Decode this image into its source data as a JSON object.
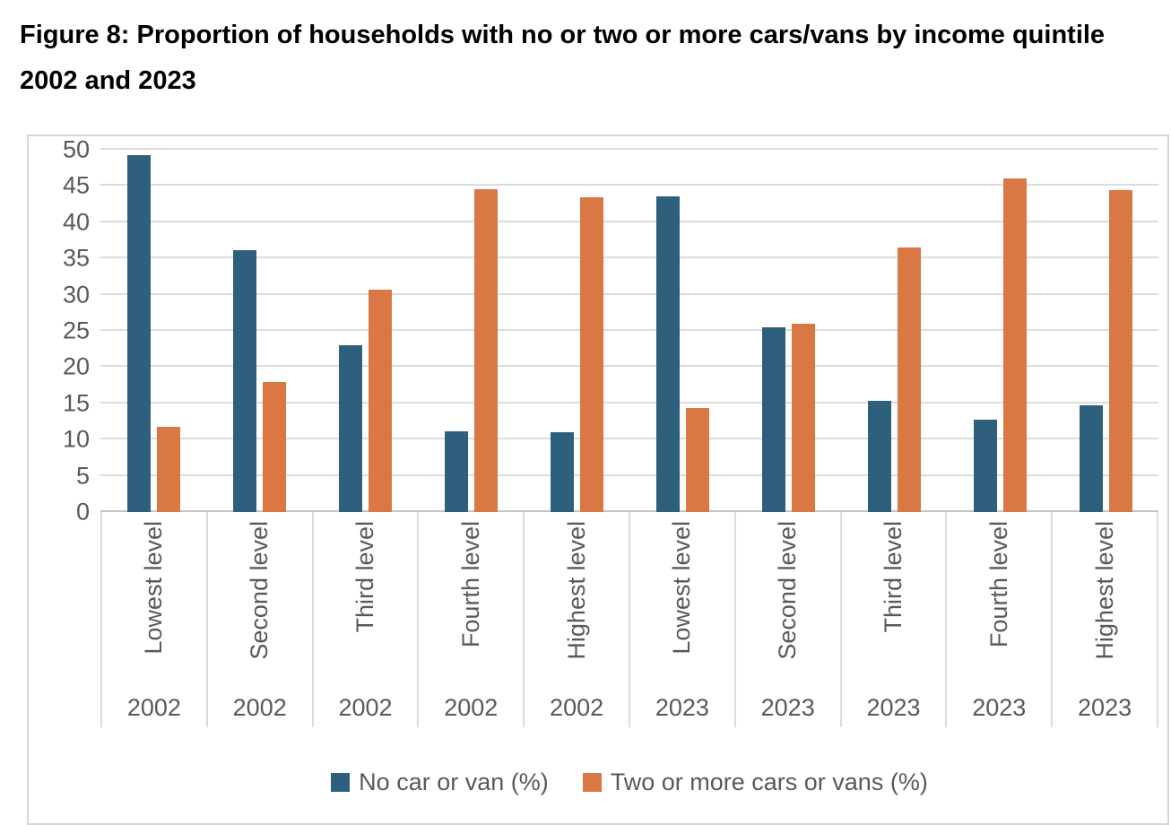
{
  "title": "Figure 8: Proportion of households with no or two or more cars/vans by income quintile 2002 and 2023",
  "chart_data": {
    "type": "bar",
    "categories": [
      {
        "label": "Lowest level",
        "year": "2002"
      },
      {
        "label": "Second level",
        "year": "2002"
      },
      {
        "label": "Third level",
        "year": "2002"
      },
      {
        "label": "Fourth level",
        "year": "2002"
      },
      {
        "label": "Highest level",
        "year": "2002"
      },
      {
        "label": "Lowest level",
        "year": "2023"
      },
      {
        "label": "Second level",
        "year": "2023"
      },
      {
        "label": "Third level",
        "year": "2023"
      },
      {
        "label": "Fourth level",
        "year": "2023"
      },
      {
        "label": "Highest level",
        "year": "2023"
      }
    ],
    "series": [
      {
        "name": "No car or van (%)",
        "color": "#2E5F7D",
        "values": [
          49.2,
          36.2,
          23.0,
          11.1,
          11.0,
          43.6,
          25.5,
          15.3,
          12.8,
          14.7
        ]
      },
      {
        "name": "Two or more cars or vans (%)",
        "color": "#D97845",
        "values": [
          11.7,
          17.9,
          30.7,
          44.5,
          43.5,
          14.3,
          26.0,
          36.5,
          46.0,
          44.4
        ]
      }
    ],
    "ylim": [
      0,
      50
    ],
    "ytick_step": 5,
    "yticks": [
      0,
      5,
      10,
      15,
      20,
      25,
      30,
      35,
      40,
      45,
      50
    ],
    "xlabel": "",
    "ylabel": "",
    "grid": "horizontal",
    "legend_position": "bottom"
  },
  "colors": {
    "axis_text": "#595959",
    "gridline": "#dcdcdc",
    "border": "#d6d6d6"
  }
}
